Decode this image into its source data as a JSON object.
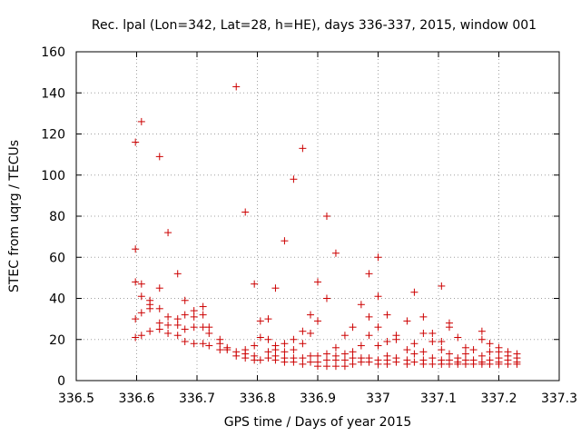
{
  "chart_data": {
    "type": "scatter",
    "title": "Rec. lpal (Lon=342, Lat=28, h=HE), days 336-337, 2015, window 001",
    "xlabel": "GPS time / Days of year 2015",
    "ylabel": "STEC from uqrg / TECUs",
    "xlim": [
      336.5,
      337.3
    ],
    "ylim": [
      0,
      160
    ],
    "xticks": [
      "336.5",
      "336.6",
      "336.7",
      "336.8",
      "336.9",
      "337",
      "337.1",
      "337.2",
      "337.3"
    ],
    "yticks": [
      "0",
      "20",
      "40",
      "60",
      "80",
      "100",
      "120",
      "140",
      "160"
    ],
    "grid": true,
    "marker": "+",
    "color": "#cc0000",
    "series": [
      {
        "name": "STEC",
        "points": [
          [
            336.598,
            116
          ],
          [
            336.598,
            64
          ],
          [
            336.598,
            48
          ],
          [
            336.598,
            30
          ],
          [
            336.598,
            21
          ],
          [
            336.608,
            126
          ],
          [
            336.608,
            47
          ],
          [
            336.608,
            41
          ],
          [
            336.608,
            33
          ],
          [
            336.608,
            22
          ],
          [
            336.622,
            39
          ],
          [
            336.622,
            37
          ],
          [
            336.622,
            35
          ],
          [
            336.622,
            24
          ],
          [
            336.638,
            109
          ],
          [
            336.638,
            45
          ],
          [
            336.638,
            35
          ],
          [
            336.638,
            28
          ],
          [
            336.638,
            25
          ],
          [
            336.652,
            72
          ],
          [
            336.652,
            31
          ],
          [
            336.652,
            27
          ],
          [
            336.652,
            23
          ],
          [
            336.668,
            52
          ],
          [
            336.668,
            30
          ],
          [
            336.668,
            27
          ],
          [
            336.668,
            22
          ],
          [
            336.68,
            39
          ],
          [
            336.68,
            32
          ],
          [
            336.68,
            25
          ],
          [
            336.68,
            19
          ],
          [
            336.695,
            34
          ],
          [
            336.695,
            31
          ],
          [
            336.695,
            26
          ],
          [
            336.695,
            18
          ],
          [
            336.71,
            36
          ],
          [
            336.71,
            32
          ],
          [
            336.71,
            26
          ],
          [
            336.71,
            18
          ],
          [
            336.72,
            26
          ],
          [
            336.72,
            23
          ],
          [
            336.72,
            17
          ],
          [
            336.738,
            20
          ],
          [
            336.738,
            18
          ],
          [
            336.738,
            15
          ],
          [
            336.75,
            16
          ],
          [
            336.75,
            15
          ],
          [
            336.765,
            143
          ],
          [
            336.765,
            14
          ],
          [
            336.765,
            12
          ],
          [
            336.78,
            82
          ],
          [
            336.78,
            15
          ],
          [
            336.78,
            13
          ],
          [
            336.78,
            11
          ],
          [
            336.795,
            47
          ],
          [
            336.795,
            17
          ],
          [
            336.795,
            12
          ],
          [
            336.795,
            10
          ],
          [
            336.805,
            29
          ],
          [
            336.805,
            21
          ],
          [
            336.805,
            10
          ],
          [
            336.818,
            30
          ],
          [
            336.818,
            20
          ],
          [
            336.818,
            14
          ],
          [
            336.818,
            11
          ],
          [
            336.83,
            45
          ],
          [
            336.83,
            17
          ],
          [
            336.83,
            15
          ],
          [
            336.83,
            12
          ],
          [
            336.83,
            10
          ],
          [
            336.845,
            68
          ],
          [
            336.845,
            18
          ],
          [
            336.845,
            14
          ],
          [
            336.845,
            11
          ],
          [
            336.845,
            9
          ],
          [
            336.86,
            98
          ],
          [
            336.86,
            20
          ],
          [
            336.86,
            15
          ],
          [
            336.86,
            11
          ],
          [
            336.86,
            9
          ],
          [
            336.875,
            113
          ],
          [
            336.875,
            24
          ],
          [
            336.875,
            18
          ],
          [
            336.875,
            11
          ],
          [
            336.875,
            8
          ],
          [
            336.888,
            32
          ],
          [
            336.888,
            23
          ],
          [
            336.888,
            12
          ],
          [
            336.888,
            9
          ],
          [
            336.9,
            48
          ],
          [
            336.9,
            29
          ],
          [
            336.9,
            12
          ],
          [
            336.9,
            9
          ],
          [
            336.9,
            7
          ],
          [
            336.915,
            80
          ],
          [
            336.915,
            40
          ],
          [
            336.915,
            13
          ],
          [
            336.915,
            10
          ],
          [
            336.915,
            7
          ],
          [
            336.93,
            62
          ],
          [
            336.93,
            16
          ],
          [
            336.93,
            12
          ],
          [
            336.93,
            10
          ],
          [
            336.93,
            7
          ],
          [
            336.945,
            22
          ],
          [
            336.945,
            13
          ],
          [
            336.945,
            10
          ],
          [
            336.945,
            7
          ],
          [
            336.958,
            26
          ],
          [
            336.958,
            14
          ],
          [
            336.958,
            11
          ],
          [
            336.958,
            8
          ],
          [
            336.972,
            37
          ],
          [
            336.972,
            17
          ],
          [
            336.972,
            11
          ],
          [
            336.972,
            9
          ],
          [
            336.985,
            52
          ],
          [
            336.985,
            31
          ],
          [
            336.985,
            22
          ],
          [
            336.985,
            11
          ],
          [
            336.985,
            9
          ],
          [
            337.0,
            60
          ],
          [
            337.0,
            41
          ],
          [
            337.0,
            26
          ],
          [
            337.0,
            17
          ],
          [
            337.0,
            10
          ],
          [
            337.0,
            8
          ],
          [
            337.015,
            32
          ],
          [
            337.015,
            19
          ],
          [
            337.015,
            12
          ],
          [
            337.015,
            10
          ],
          [
            337.015,
            8
          ],
          [
            337.03,
            22
          ],
          [
            337.03,
            20
          ],
          [
            337.03,
            11
          ],
          [
            337.03,
            9
          ],
          [
            337.048,
            29
          ],
          [
            337.048,
            15
          ],
          [
            337.048,
            10
          ],
          [
            337.048,
            8
          ],
          [
            337.06,
            43
          ],
          [
            337.06,
            18
          ],
          [
            337.06,
            13
          ],
          [
            337.06,
            9
          ],
          [
            337.075,
            31
          ],
          [
            337.075,
            23
          ],
          [
            337.075,
            14
          ],
          [
            337.075,
            10
          ],
          [
            337.075,
            8
          ],
          [
            337.09,
            23
          ],
          [
            337.09,
            19
          ],
          [
            337.09,
            11
          ],
          [
            337.09,
            8
          ],
          [
            337.105,
            46
          ],
          [
            337.105,
            19
          ],
          [
            337.105,
            15
          ],
          [
            337.105,
            10
          ],
          [
            337.105,
            8
          ],
          [
            337.118,
            28
          ],
          [
            337.118,
            26
          ],
          [
            337.118,
            13
          ],
          [
            337.118,
            10
          ],
          [
            337.118,
            8
          ],
          [
            337.132,
            21
          ],
          [
            337.132,
            11
          ],
          [
            337.132,
            9
          ],
          [
            337.132,
            8
          ],
          [
            337.145,
            16
          ],
          [
            337.145,
            13
          ],
          [
            337.145,
            10
          ],
          [
            337.145,
            8
          ],
          [
            337.158,
            15
          ],
          [
            337.158,
            10
          ],
          [
            337.158,
            8
          ],
          [
            337.172,
            24
          ],
          [
            337.172,
            20
          ],
          [
            337.172,
            12
          ],
          [
            337.172,
            9
          ],
          [
            337.172,
            8
          ],
          [
            337.185,
            18
          ],
          [
            337.185,
            14
          ],
          [
            337.185,
            10
          ],
          [
            337.185,
            8
          ],
          [
            337.2,
            16
          ],
          [
            337.2,
            14
          ],
          [
            337.2,
            11
          ],
          [
            337.2,
            9
          ],
          [
            337.2,
            8
          ],
          [
            337.215,
            14
          ],
          [
            337.215,
            12
          ],
          [
            337.215,
            10
          ],
          [
            337.215,
            8
          ],
          [
            337.23,
            13
          ],
          [
            337.23,
            11
          ],
          [
            337.23,
            9
          ],
          [
            337.23,
            8
          ]
        ]
      }
    ]
  }
}
